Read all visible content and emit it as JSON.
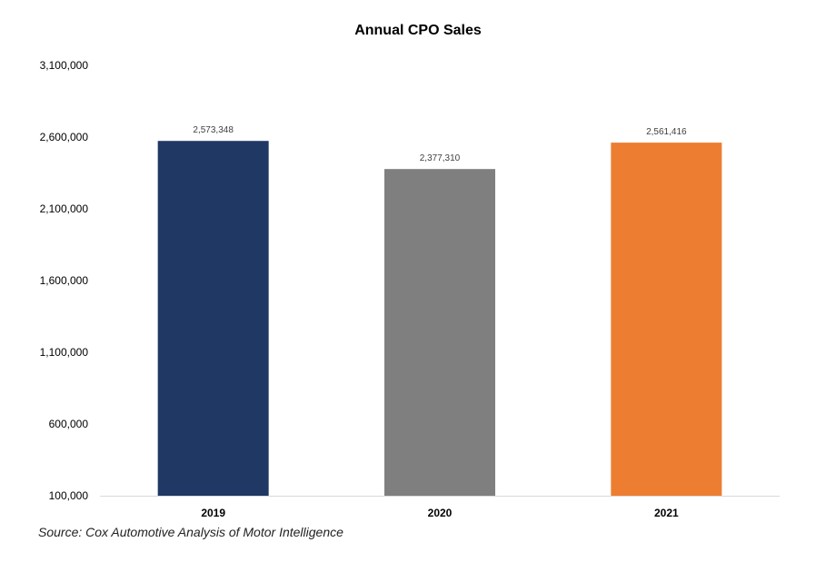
{
  "chart_data": {
    "type": "bar",
    "title": "Annual CPO Sales",
    "categories": [
      "2019",
      "2020",
      "2021"
    ],
    "values": [
      2573348,
      2377310,
      2561416
    ],
    "value_labels": [
      "2,573,348",
      "2,377,310",
      "2,561,416"
    ],
    "bar_colors": [
      "#1f3864",
      "#7f7f7f",
      "#ed7d31"
    ],
    "ylim": [
      100000,
      3100000
    ],
    "yticks": [
      100000,
      600000,
      1100000,
      1600000,
      2100000,
      2600000,
      3100000
    ],
    "ytick_labels": [
      "100,000",
      "600,000",
      "1,100,000",
      "1,600,000",
      "2,100,000",
      "2,600,000",
      "3,100,000"
    ],
    "xlabel": "",
    "ylabel": "",
    "grid": false,
    "legend": "none"
  },
  "source": "Source: Cox Automotive Analysis of Motor Intelligence"
}
